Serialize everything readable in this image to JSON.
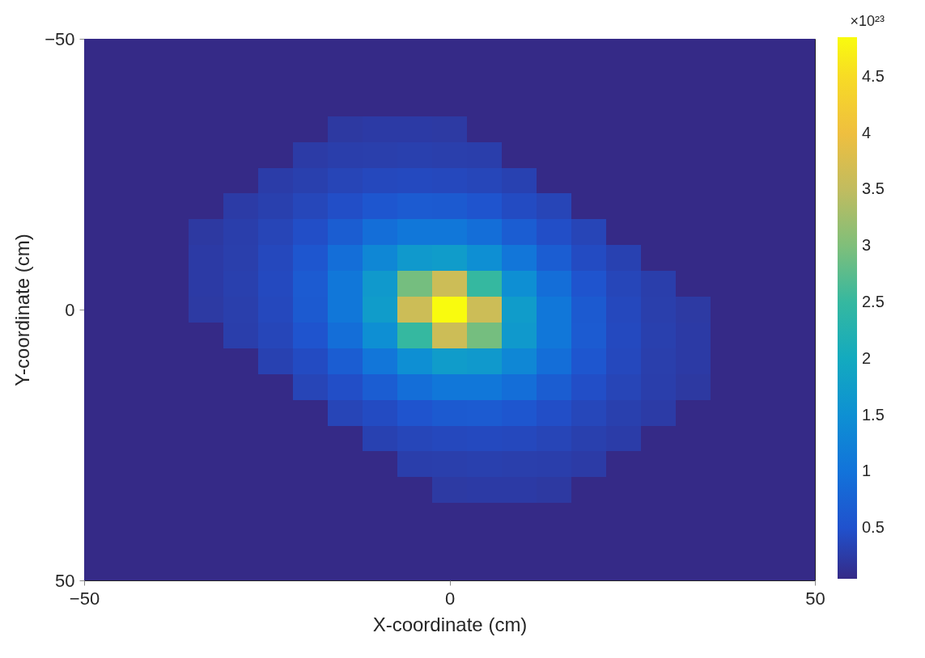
{
  "chart_data": {
    "type": "heatmap",
    "xlabel": "X-coordinate (cm)",
    "ylabel": "Y-coordinate (cm)",
    "clabel": "×10²³",
    "x": [
      -47.62,
      -42.86,
      -38.1,
      -33.33,
      -28.57,
      -23.81,
      -19.05,
      -14.29,
      -9.52,
      -4.76,
      0,
      4.76,
      9.52,
      14.29,
      19.05,
      23.81,
      28.57,
      33.33,
      38.1,
      42.86,
      47.62
    ],
    "y": [
      -47.62,
      -42.86,
      -38.1,
      -33.33,
      -28.57,
      -23.81,
      -19.05,
      -14.29,
      -9.52,
      -4.76,
      0,
      4.76,
      9.52,
      14.29,
      19.05,
      23.81,
      28.57,
      33.33,
      38.1,
      42.86,
      47.62
    ],
    "xlim": [
      -50,
      50
    ],
    "xticks": [
      -50,
      0,
      50
    ],
    "ylim": [
      50,
      -50
    ],
    "yticks": [
      -50,
      0,
      50
    ],
    "clim": [
      0.05,
      4.85
    ],
    "cticks": [
      0.5,
      1,
      1.5,
      2,
      2.5,
      3,
      3.5,
      4,
      4.5
    ],
    "cells": [
      [
        0.05,
        0.05,
        0.05,
        0.05,
        0.05,
        0.05,
        0.05,
        0.05,
        0.05,
        0.05,
        0.05,
        0.05,
        0.05,
        0.05,
        0.05,
        0.05,
        0.05,
        0.05,
        0.05,
        0.05,
        0.05
      ],
      [
        0.05,
        0.05,
        0.05,
        0.05,
        0.05,
        0.05,
        0.05,
        0.05,
        0.05,
        0.05,
        0.05,
        0.05,
        0.05,
        0.05,
        0.05,
        0.05,
        0.05,
        0.05,
        0.05,
        0.05,
        0.05
      ],
      [
        0.05,
        0.05,
        0.05,
        0.05,
        0.05,
        0.05,
        0.05,
        0.05,
        0.05,
        0.05,
        0.05,
        0.05,
        0.05,
        0.05,
        0.05,
        0.05,
        0.05,
        0.05,
        0.05,
        0.05,
        0.05
      ],
      [
        0.05,
        0.05,
        0.05,
        0.05,
        0.05,
        0.05,
        0.05,
        0.22,
        0.24,
        0.24,
        0.23,
        0.05,
        0.05,
        0.05,
        0.05,
        0.05,
        0.05,
        0.05,
        0.05,
        0.05,
        0.05
      ],
      [
        0.05,
        0.05,
        0.05,
        0.05,
        0.05,
        0.05,
        0.25,
        0.28,
        0.29,
        0.3,
        0.29,
        0.28,
        0.05,
        0.05,
        0.05,
        0.05,
        0.05,
        0.05,
        0.05,
        0.05,
        0.05
      ],
      [
        0.05,
        0.05,
        0.05,
        0.05,
        0.05,
        0.26,
        0.3,
        0.36,
        0.4,
        0.41,
        0.4,
        0.37,
        0.32,
        0.05,
        0.05,
        0.05,
        0.05,
        0.05,
        0.05,
        0.05,
        0.05
      ],
      [
        0.05,
        0.05,
        0.05,
        0.05,
        0.25,
        0.3,
        0.38,
        0.46,
        0.58,
        0.65,
        0.63,
        0.55,
        0.43,
        0.36,
        0.05,
        0.05,
        0.05,
        0.05,
        0.05,
        0.05,
        0.05
      ],
      [
        0.05,
        0.05,
        0.05,
        0.22,
        0.28,
        0.36,
        0.46,
        0.67,
        0.92,
        1.07,
        1.07,
        0.92,
        0.68,
        0.46,
        0.36,
        0.05,
        0.05,
        0.05,
        0.05,
        0.05,
        0.05
      ],
      [
        0.05,
        0.05,
        0.05,
        0.24,
        0.29,
        0.4,
        0.58,
        0.92,
        1.35,
        1.67,
        1.73,
        1.49,
        1.05,
        0.68,
        0.43,
        0.32,
        0.05,
        0.05,
        0.05,
        0.05,
        0.05
      ],
      [
        0.05,
        0.05,
        0.05,
        0.24,
        0.3,
        0.41,
        0.65,
        1.07,
        1.67,
        2.93,
        3.62,
        2.5,
        1.49,
        0.92,
        0.55,
        0.37,
        0.28,
        0.05,
        0.05,
        0.05,
        0.05
      ],
      [
        0.05,
        0.05,
        0.05,
        0.23,
        0.29,
        0.4,
        0.63,
        1.07,
        1.73,
        3.62,
        4.85,
        3.62,
        1.73,
        1.07,
        0.63,
        0.4,
        0.29,
        0.23,
        0.05,
        0.05,
        0.05
      ],
      [
        0.05,
        0.05,
        0.05,
        0.05,
        0.28,
        0.37,
        0.55,
        0.92,
        1.49,
        2.5,
        3.62,
        2.93,
        1.67,
        1.07,
        0.65,
        0.41,
        0.3,
        0.24,
        0.05,
        0.05,
        0.05
      ],
      [
        0.05,
        0.05,
        0.05,
        0.05,
        0.05,
        0.32,
        0.43,
        0.68,
        1.05,
        1.49,
        1.73,
        1.67,
        1.35,
        0.92,
        0.58,
        0.4,
        0.29,
        0.24,
        0.05,
        0.05,
        0.05
      ],
      [
        0.05,
        0.05,
        0.05,
        0.05,
        0.05,
        0.05,
        0.36,
        0.46,
        0.68,
        0.92,
        1.07,
        1.07,
        0.92,
        0.67,
        0.46,
        0.36,
        0.28,
        0.22,
        0.05,
        0.05,
        0.05
      ],
      [
        0.05,
        0.05,
        0.05,
        0.05,
        0.05,
        0.05,
        0.05,
        0.36,
        0.43,
        0.55,
        0.63,
        0.65,
        0.58,
        0.46,
        0.38,
        0.3,
        0.25,
        0.05,
        0.05,
        0.05,
        0.05
      ],
      [
        0.05,
        0.05,
        0.05,
        0.05,
        0.05,
        0.05,
        0.05,
        0.05,
        0.32,
        0.37,
        0.4,
        0.41,
        0.4,
        0.36,
        0.3,
        0.26,
        0.05,
        0.05,
        0.05,
        0.05,
        0.05
      ],
      [
        0.05,
        0.05,
        0.05,
        0.05,
        0.05,
        0.05,
        0.05,
        0.05,
        0.05,
        0.28,
        0.29,
        0.3,
        0.29,
        0.28,
        0.25,
        0.05,
        0.05,
        0.05,
        0.05,
        0.05,
        0.05
      ],
      [
        0.05,
        0.05,
        0.05,
        0.05,
        0.05,
        0.05,
        0.05,
        0.05,
        0.05,
        0.05,
        0.23,
        0.24,
        0.24,
        0.22,
        0.05,
        0.05,
        0.05,
        0.05,
        0.05,
        0.05,
        0.05
      ],
      [
        0.05,
        0.05,
        0.05,
        0.05,
        0.05,
        0.05,
        0.05,
        0.05,
        0.05,
        0.05,
        0.05,
        0.05,
        0.05,
        0.05,
        0.05,
        0.05,
        0.05,
        0.05,
        0.05,
        0.05,
        0.05
      ],
      [
        0.05,
        0.05,
        0.05,
        0.05,
        0.05,
        0.05,
        0.05,
        0.05,
        0.05,
        0.05,
        0.05,
        0.05,
        0.05,
        0.05,
        0.05,
        0.05,
        0.05,
        0.05,
        0.05,
        0.05,
        0.05
      ],
      [
        0.05,
        0.05,
        0.05,
        0.05,
        0.05,
        0.05,
        0.05,
        0.05,
        0.05,
        0.05,
        0.05,
        0.05,
        0.05,
        0.05,
        0.05,
        0.05,
        0.05,
        0.05,
        0.05,
        0.05,
        0.05
      ]
    ]
  }
}
